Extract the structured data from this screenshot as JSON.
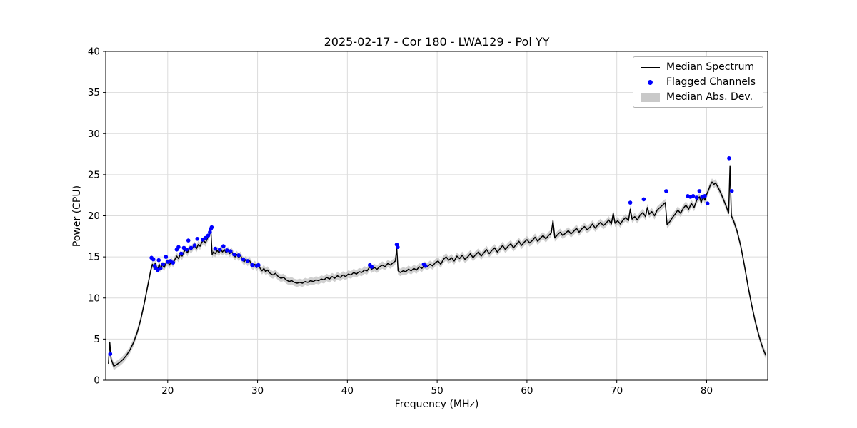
{
  "chart_data": {
    "type": "line",
    "title": "2025-02-17 - Cor 180 - LWA129 - Pol YY",
    "xlabel": "Frequency (MHz)",
    "ylabel": "Power (CPU)",
    "xlim": [
      13.1,
      86.8
    ],
    "ylim": [
      0,
      40
    ],
    "xticks": [
      20,
      30,
      40,
      50,
      60,
      70,
      80
    ],
    "yticks": [
      0,
      5,
      10,
      15,
      20,
      25,
      30,
      35,
      40
    ],
    "grid": true,
    "grid_color": "#dcdcdc",
    "frame_color": "#000000",
    "legend": {
      "position": "upper right",
      "entries": [
        {
          "label": "Median Spectrum",
          "type": "line",
          "color": "#000000"
        },
        {
          "label": "Flagged Channels",
          "type": "scatter",
          "color": "#0000ff"
        },
        {
          "label": "Median Abs. Dev.",
          "type": "band",
          "color": "#c0c0c0"
        }
      ]
    },
    "series": [
      {
        "name": "Median Spectrum",
        "type": "line",
        "color": "#000000",
        "x": [
          13.4,
          13.55,
          13.7,
          14.0,
          14.3,
          14.7,
          15.0,
          15.4,
          15.8,
          16.2,
          16.6,
          17.0,
          17.4,
          17.8,
          18.1,
          18.3,
          18.45,
          18.6,
          18.75,
          18.9,
          19.05,
          19.2,
          19.4,
          19.6,
          19.8,
          20.0,
          20.2,
          20.4,
          20.6,
          20.8,
          21.0,
          21.2,
          21.4,
          21.6,
          21.8,
          22.0,
          22.2,
          22.4,
          22.6,
          22.8,
          23.0,
          23.2,
          23.4,
          23.6,
          23.8,
          24.0,
          24.2,
          24.4,
          24.6,
          24.8,
          24.95,
          25.1,
          25.3,
          25.5,
          25.7,
          25.9,
          26.1,
          26.3,
          26.5,
          26.7,
          26.9,
          27.1,
          27.3,
          27.5,
          27.7,
          27.9,
          28.1,
          28.3,
          28.5,
          28.7,
          28.9,
          29.1,
          29.3,
          29.5,
          29.7,
          29.9,
          30.1,
          30.3,
          30.5,
          30.7,
          30.9,
          31.1,
          31.4,
          31.7,
          32.0,
          32.3,
          32.6,
          32.9,
          33.2,
          33.5,
          33.8,
          34.1,
          34.4,
          34.7,
          35.0,
          35.3,
          35.6,
          35.9,
          36.2,
          36.5,
          36.8,
          37.1,
          37.4,
          37.7,
          38.0,
          38.3,
          38.6,
          38.9,
          39.2,
          39.5,
          39.8,
          40.1,
          40.4,
          40.7,
          41.0,
          41.3,
          41.6,
          41.9,
          42.2,
          42.5,
          42.7,
          43.0,
          43.3,
          43.6,
          43.9,
          44.2,
          44.5,
          44.8,
          45.1,
          45.35,
          45.5,
          45.65,
          45.9,
          46.2,
          46.5,
          46.8,
          47.1,
          47.4,
          47.7,
          48.0,
          48.3,
          48.6,
          48.9,
          49.2,
          49.5,
          49.8,
          50.1,
          50.4,
          50.7,
          51.0,
          51.3,
          51.6,
          51.9,
          52.2,
          52.5,
          52.8,
          53.1,
          53.4,
          53.7,
          54.0,
          54.3,
          54.6,
          54.9,
          55.2,
          55.5,
          55.8,
          56.1,
          56.4,
          56.7,
          57.0,
          57.3,
          57.6,
          57.9,
          58.2,
          58.5,
          58.8,
          59.1,
          59.4,
          59.7,
          60.0,
          60.3,
          60.6,
          60.9,
          61.2,
          61.5,
          61.8,
          62.1,
          62.4,
          62.7,
          62.9,
          63.1,
          63.4,
          63.7,
          64.0,
          64.3,
          64.6,
          64.9,
          65.2,
          65.5,
          65.8,
          66.1,
          66.4,
          66.7,
          67.0,
          67.3,
          67.6,
          67.9,
          68.2,
          68.5,
          68.8,
          69.1,
          69.4,
          69.6,
          69.8,
          70.1,
          70.4,
          70.7,
          71.0,
          71.3,
          71.5,
          71.7,
          72.0,
          72.3,
          72.6,
          72.9,
          73.2,
          73.4,
          73.6,
          73.9,
          74.2,
          74.5,
          74.8,
          75.1,
          75.4,
          75.6,
          75.9,
          76.2,
          76.5,
          76.8,
          77.1,
          77.4,
          77.7,
          78.0,
          78.3,
          78.6,
          78.9,
          79.2,
          79.4,
          79.6,
          79.8,
          80.0,
          80.2,
          80.4,
          80.6,
          80.8,
          81.0,
          81.3,
          81.6,
          81.9,
          82.2,
          82.45,
          82.6,
          82.75,
          83.0,
          83.4,
          83.8,
          84.2,
          84.6,
          85.0,
          85.4,
          85.8,
          86.1,
          86.4,
          86.6
        ],
        "y": [
          2.0,
          4.6,
          2.6,
          1.7,
          1.9,
          2.2,
          2.5,
          3.0,
          3.7,
          4.6,
          5.8,
          7.4,
          9.4,
          11.6,
          13.3,
          14.1,
          13.7,
          14.2,
          13.8,
          13.5,
          14.1,
          13.6,
          14.0,
          13.7,
          14.2,
          14.4,
          14.0,
          14.5,
          14.2,
          14.7,
          15.1,
          14.8,
          15.3,
          15.1,
          15.6,
          15.9,
          15.5,
          16.1,
          15.8,
          16.2,
          16.4,
          16.0,
          16.5,
          16.3,
          16.8,
          17.0,
          16.7,
          17.2,
          17.6,
          18.3,
          15.3,
          15.6,
          15.4,
          15.8,
          15.5,
          15.9,
          15.6,
          15.9,
          15.5,
          15.8,
          15.4,
          15.7,
          15.3,
          15.0,
          15.3,
          14.9,
          15.2,
          14.7,
          14.4,
          14.7,
          14.3,
          14.6,
          14.1,
          13.8,
          14.1,
          13.7,
          14.0,
          13.6,
          13.3,
          13.6,
          13.2,
          13.4,
          13.0,
          12.8,
          13.0,
          12.6,
          12.4,
          12.5,
          12.2,
          12.0,
          12.1,
          11.9,
          11.8,
          11.9,
          11.8,
          12.0,
          11.9,
          12.1,
          12.0,
          12.2,
          12.1,
          12.3,
          12.2,
          12.5,
          12.3,
          12.6,
          12.4,
          12.7,
          12.5,
          12.8,
          12.6,
          12.9,
          12.8,
          13.1,
          12.9,
          13.2,
          13.1,
          13.4,
          13.3,
          13.8,
          13.5,
          13.7,
          13.5,
          13.8,
          14.0,
          13.8,
          14.2,
          14.0,
          14.3,
          14.5,
          16.1,
          13.3,
          13.1,
          13.3,
          13.2,
          13.5,
          13.3,
          13.6,
          13.4,
          13.8,
          13.6,
          14.0,
          13.8,
          14.1,
          13.9,
          14.3,
          14.5,
          14.1,
          14.7,
          15.0,
          14.6,
          14.9,
          14.5,
          15.1,
          14.8,
          15.2,
          14.7,
          15.0,
          15.4,
          14.9,
          15.3,
          15.6,
          15.1,
          15.5,
          15.9,
          15.4,
          15.8,
          16.1,
          15.6,
          16.0,
          16.4,
          15.9,
          16.3,
          16.6,
          16.1,
          16.5,
          16.9,
          16.4,
          16.8,
          17.1,
          16.7,
          17.0,
          17.4,
          16.9,
          17.3,
          17.6,
          17.2,
          17.6,
          17.9,
          19.4,
          17.3,
          17.7,
          18.0,
          17.6,
          17.9,
          18.2,
          17.8,
          18.1,
          18.5,
          18.0,
          18.4,
          18.7,
          18.3,
          18.6,
          19.0,
          18.5,
          18.9,
          19.2,
          18.8,
          19.1,
          19.5,
          19.0,
          20.3,
          19.1,
          19.4,
          19.0,
          19.5,
          19.8,
          19.4,
          20.8,
          19.6,
          19.9,
          19.5,
          20.1,
          20.4,
          19.9,
          21.0,
          20.2,
          20.5,
          20.0,
          20.7,
          21.0,
          21.3,
          21.6,
          18.9,
          19.3,
          19.8,
          20.2,
          20.7,
          20.3,
          20.9,
          21.3,
          20.8,
          21.5,
          21.0,
          21.9,
          22.3,
          21.6,
          22.4,
          21.9,
          22.6,
          23.1,
          23.7,
          24.1,
          23.8,
          24.0,
          23.4,
          22.7,
          21.9,
          21.1,
          20.3,
          26.0,
          20.0,
          19.4,
          18.1,
          16.3,
          14.0,
          11.5,
          9.2,
          7.2,
          5.5,
          4.4,
          3.5,
          3.0
        ]
      },
      {
        "name": "Flagged Channels",
        "type": "scatter",
        "color": "#0000ff",
        "x": [
          13.6,
          18.2,
          18.4,
          18.55,
          18.7,
          18.9,
          19.0,
          19.2,
          19.5,
          19.8,
          20.0,
          20.3,
          20.6,
          21.0,
          21.2,
          21.5,
          21.8,
          22.1,
          22.3,
          22.6,
          23.0,
          23.3,
          23.9,
          24.2,
          24.5,
          24.7,
          24.8,
          24.9,
          25.3,
          25.8,
          26.2,
          26.6,
          27.0,
          27.4,
          27.9,
          28.4,
          28.9,
          29.4,
          29.9,
          30.1,
          42.5,
          42.7,
          45.5,
          45.6,
          48.5,
          48.7,
          71.5,
          73.0,
          75.5,
          77.9,
          78.2,
          78.5,
          78.9,
          79.2,
          79.5,
          79.8,
          80.1,
          82.5,
          82.8
        ],
        "y": [
          3.2,
          14.9,
          14.7,
          13.9,
          13.6,
          13.4,
          14.6,
          13.6,
          14.1,
          15.0,
          14.4,
          14.5,
          14.3,
          15.9,
          16.2,
          15.4,
          16.1,
          15.9,
          17.0,
          16.1,
          16.4,
          17.2,
          17.1,
          17.3,
          17.6,
          18.0,
          18.4,
          18.6,
          16.0,
          15.9,
          16.3,
          15.8,
          15.7,
          15.3,
          15.2,
          14.7,
          14.5,
          14.0,
          13.9,
          14.0,
          14.0,
          13.8,
          16.5,
          16.2,
          14.1,
          13.9,
          21.6,
          22.0,
          23.0,
          22.4,
          22.3,
          22.4,
          22.2,
          23.0,
          22.3,
          22.4,
          21.5,
          27.0,
          23.0
        ]
      },
      {
        "name": "Median Abs. Dev.",
        "type": "band",
        "color": "#c0c0c0",
        "opacity": 0.75,
        "half_width": 0.45
      }
    ]
  }
}
